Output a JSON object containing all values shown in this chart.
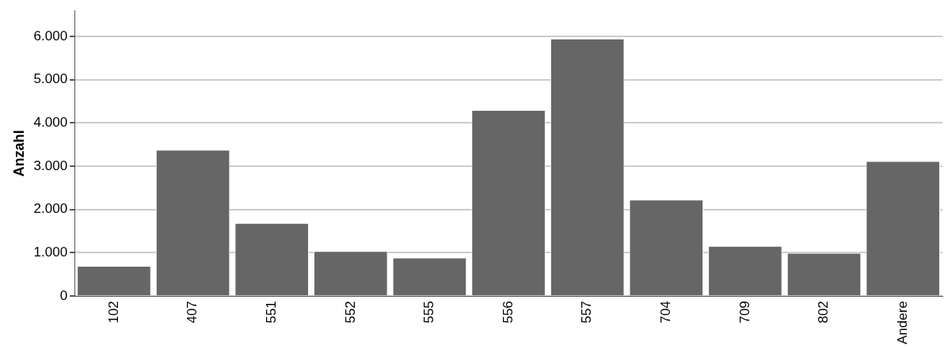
{
  "chart_data": {
    "type": "bar",
    "ylabel": "Anzahl",
    "categories": [
      "102",
      "407",
      "551",
      "552",
      "555",
      "556",
      "557",
      "704",
      "709",
      "802",
      "Andere"
    ],
    "values": [
      700,
      3380,
      1690,
      1040,
      890,
      4300,
      5950,
      2230,
      1160,
      1000,
      3120
    ],
    "color": "#666666",
    "ylim": [
      0,
      6600
    ],
    "yticks": [
      {
        "value": 0,
        "label": "0"
      },
      {
        "value": 1000,
        "label": "1.000"
      },
      {
        "value": 2000,
        "label": "2.000"
      },
      {
        "value": 3000,
        "label": "3.000"
      },
      {
        "value": 4000,
        "label": "4.000"
      },
      {
        "value": 5000,
        "label": "5.000"
      },
      {
        "value": 6000,
        "label": "6.000"
      }
    ],
    "grid": "y",
    "legend": false
  }
}
